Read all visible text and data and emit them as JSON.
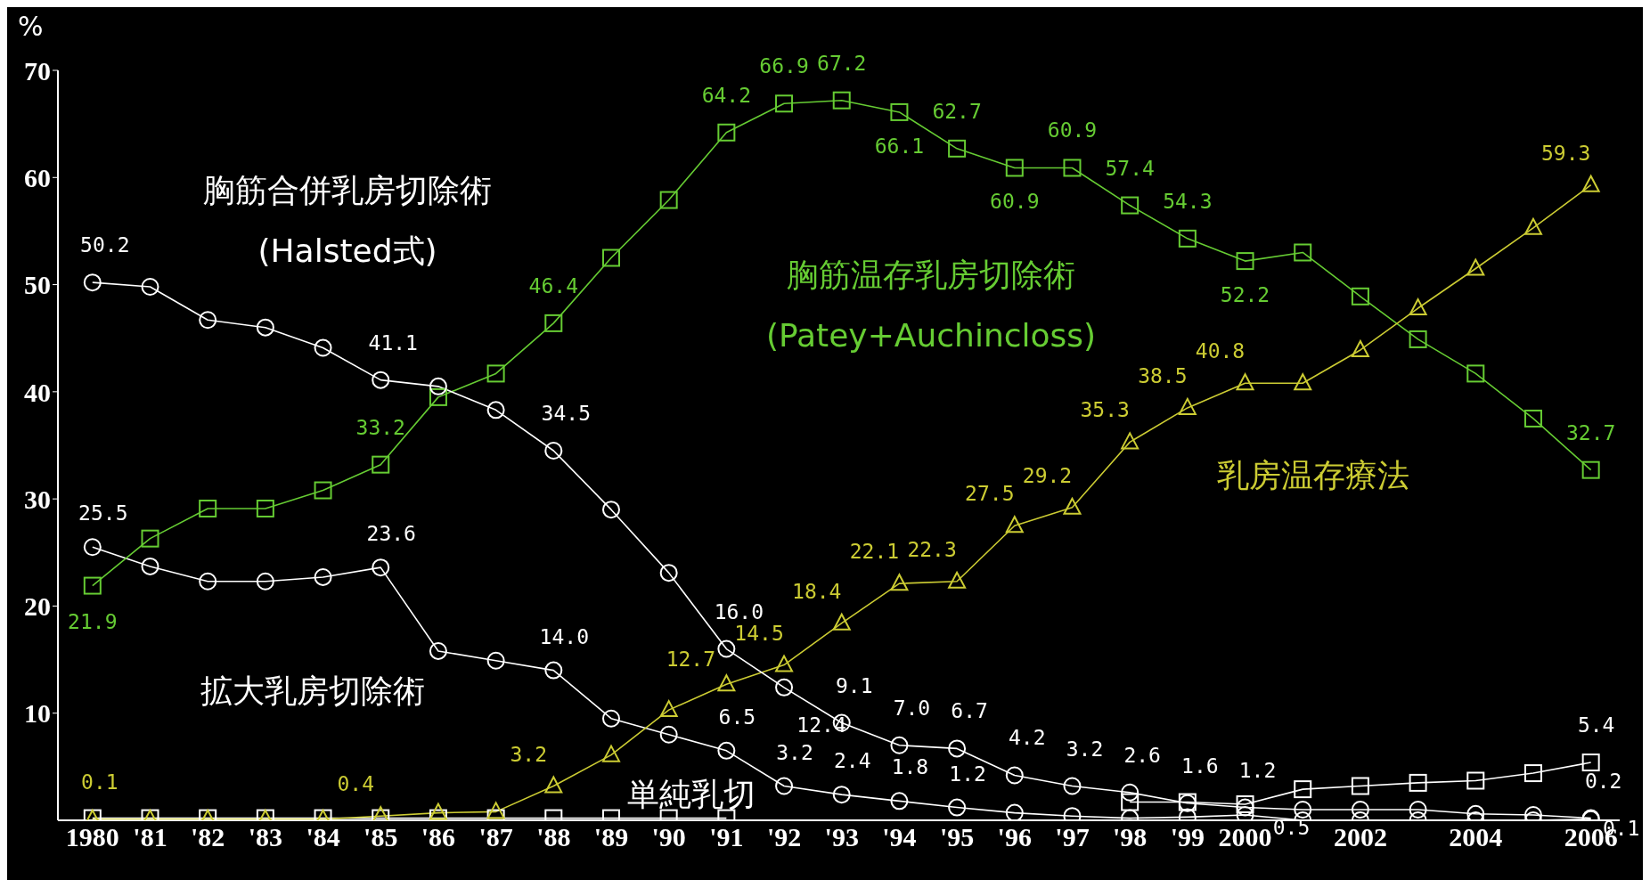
{
  "chart_data": {
    "type": "line",
    "ylabel": "%",
    "line_style": "solid",
    "categories": [
      "1980",
      "'81",
      "'82",
      "'83",
      "'84",
      "'85",
      "'86",
      "'87",
      "'88",
      "'89",
      "'90",
      "'91",
      "'92",
      "'93",
      "'94",
      "'95",
      "'96",
      "'97",
      "'98",
      "'99",
      "2000",
      null,
      "2002",
      null,
      "2004",
      null,
      "2006"
    ],
    "ylim": [
      0,
      70
    ],
    "yticks": [
      10,
      20,
      30,
      40,
      50,
      60,
      70
    ],
    "series": [
      {
        "name": "胸筋合併乳房切除術\n(Halsted式)",
        "color": "#ffffff",
        "marker": "circle",
        "values": [
          50.2,
          49.8,
          46.7,
          46.0,
          44.1,
          41.1,
          40.5,
          38.3,
          34.5,
          29.0,
          23.1,
          16.0,
          12.4,
          9.1,
          7.0,
          6.7,
          4.2,
          3.2,
          2.6,
          1.6,
          1.2,
          1.0,
          1.0,
          1.0,
          0.6,
          0.5,
          0.2
        ],
        "value_labels": [
          "50.2",
          null,
          null,
          null,
          null,
          "41.1",
          null,
          null,
          "34.5",
          null,
          null,
          "16.0",
          "12.4",
          "9.1",
          "7.0",
          "6.7",
          "4.2",
          "3.2",
          "2.6",
          "1.6",
          "1.2",
          null,
          null,
          null,
          null,
          null,
          "0.2"
        ]
      },
      {
        "name": "胸筋温存乳房切除術\n(Patey+Auchincloss)",
        "color": "#66cc33",
        "marker": "square",
        "values": [
          21.9,
          26.3,
          29.1,
          29.1,
          30.8,
          33.2,
          39.5,
          41.7,
          46.4,
          52.5,
          57.9,
          64.2,
          66.9,
          67.2,
          66.1,
          62.7,
          60.9,
          60.9,
          57.4,
          54.3,
          52.2,
          53.0,
          48.9,
          44.9,
          41.7,
          37.5,
          32.7
        ],
        "value_labels": [
          "21.9",
          null,
          null,
          null,
          null,
          "33.2",
          null,
          null,
          "46.4",
          null,
          null,
          "64.2",
          "66.9",
          "67.2",
          "66.1",
          "62.7",
          "60.9",
          "60.9",
          "57.4",
          "54.3",
          "52.2",
          null,
          null,
          null,
          null,
          null,
          "32.7"
        ]
      },
      {
        "name": "乳房温存療法",
        "color": "#cccc33",
        "marker": "triangle",
        "values": [
          0.1,
          0.1,
          0.1,
          0.1,
          0.1,
          0.4,
          0.7,
          0.8,
          3.2,
          6.1,
          10.3,
          12.7,
          14.5,
          18.4,
          22.1,
          22.3,
          27.5,
          29.2,
          35.3,
          38.5,
          40.8,
          40.8,
          43.9,
          47.8,
          51.5,
          55.3,
          59.3
        ],
        "value_labels": [
          "0.1",
          null,
          null,
          null,
          null,
          "0.4",
          null,
          null,
          "3.2",
          null,
          null,
          "12.7",
          "14.5",
          "18.4",
          "22.1",
          "22.3",
          "27.5",
          "29.2",
          "35.3",
          "38.5",
          "40.8",
          null,
          null,
          null,
          null,
          null,
          "59.3"
        ]
      },
      {
        "name": "拡大乳房切除術",
        "color": "#ffffff",
        "marker": "circle",
        "values": [
          25.5,
          23.7,
          22.3,
          22.3,
          22.7,
          23.6,
          15.8,
          14.9,
          14.0,
          9.5,
          8.0,
          6.5,
          3.2,
          2.4,
          1.8,
          1.2,
          0.7,
          0.4,
          0.2,
          0.3,
          0.5,
          0.0,
          0.0,
          0.0,
          0.0,
          0.0,
          0.1
        ],
        "value_labels": [
          "25.5",
          null,
          null,
          null,
          null,
          "23.6",
          null,
          null,
          "14.0",
          null,
          null,
          "6.5",
          "3.2",
          "2.4",
          "1.8",
          "1.2",
          null,
          null,
          null,
          null,
          "0.5",
          null,
          null,
          null,
          null,
          null,
          "0.1"
        ]
      },
      {
        "name": "単純乳切",
        "color": "#ffffff",
        "marker": "square",
        "values": [
          0.2,
          0.2,
          0.2,
          0.2,
          0.2,
          0.2,
          0.2,
          0.2,
          0.2,
          0.2,
          0.2,
          0.2,
          null,
          null,
          null,
          null,
          null,
          null,
          1.7,
          1.7,
          1.5,
          2.9,
          3.2,
          3.5,
          3.7,
          4.4,
          5.4
        ],
        "value_labels": [
          null,
          null,
          null,
          null,
          null,
          null,
          null,
          null,
          null,
          null,
          null,
          null,
          null,
          null,
          null,
          null,
          null,
          null,
          null,
          null,
          null,
          null,
          null,
          null,
          null,
          null,
          "5.4"
        ]
      }
    ]
  }
}
